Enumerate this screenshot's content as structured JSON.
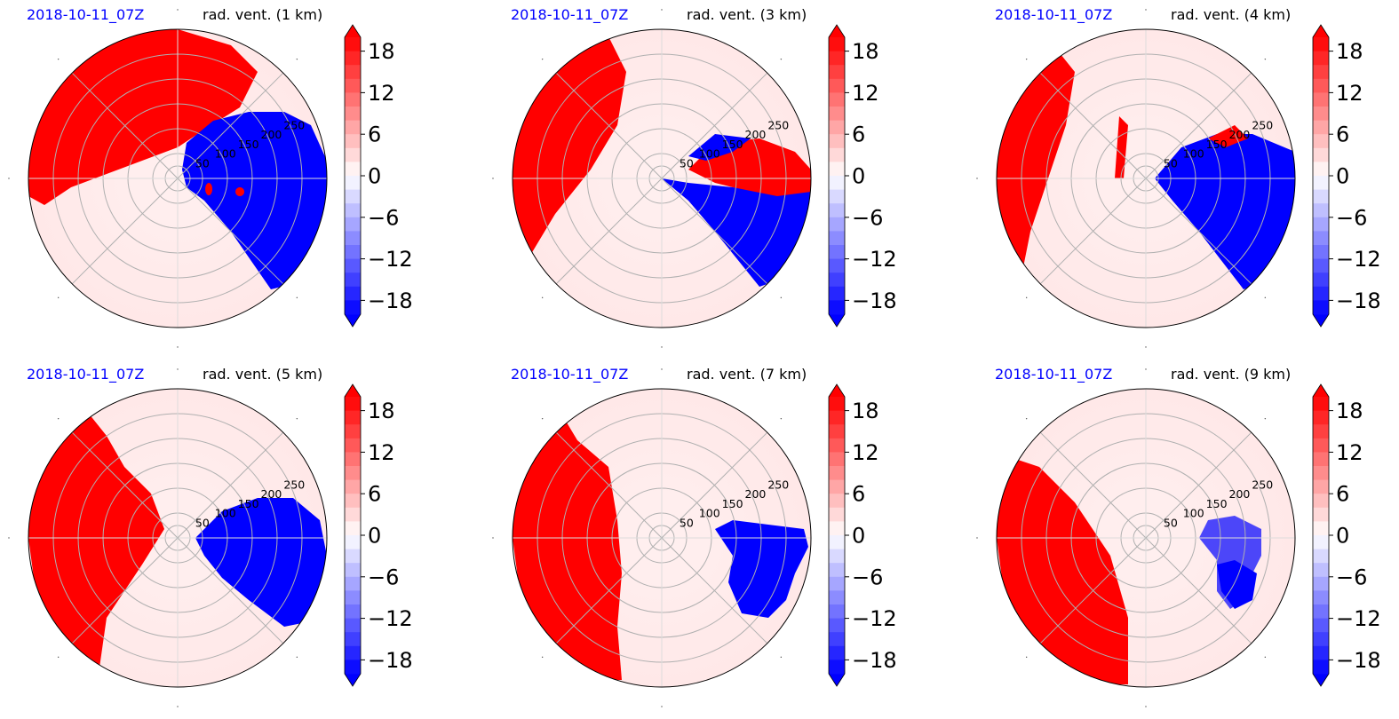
{
  "colors": {
    "positive": "#ff0000",
    "negative": "#0000ff",
    "date_text": "#0000ff",
    "grid": "#b0b0b0"
  },
  "colorbar": {
    "ticks": [
      "18",
      "12",
      "6",
      "0",
      "−6",
      "−12",
      "−18"
    ],
    "tick_values": [
      18,
      12,
      6,
      0,
      -6,
      -12,
      -18
    ],
    "range": [
      -20,
      20
    ],
    "extend": "both"
  },
  "chart_data": [
    {
      "type": "heatmap",
      "projection": "polar",
      "date": "2018-10-11_07Z",
      "title": "rad. vent. (1 km)",
      "radial_ticks": [
        "50",
        "100",
        "150",
        "200",
        "250"
      ],
      "rlim": [
        0,
        300
      ],
      "grid": true
    },
    {
      "type": "heatmap",
      "projection": "polar",
      "date": "2018-10-11_07Z",
      "title": "rad. vent. (3 km)",
      "radial_ticks": [
        "50",
        "100",
        "150",
        "200",
        "250"
      ],
      "rlim": [
        0,
        300
      ],
      "grid": true
    },
    {
      "type": "heatmap",
      "projection": "polar",
      "date": "2018-10-11_07Z",
      "title": "rad. vent. (4 km)",
      "radial_ticks": [
        "50",
        "100",
        "150",
        "200",
        "250"
      ],
      "rlim": [
        0,
        300
      ],
      "grid": true
    },
    {
      "type": "heatmap",
      "projection": "polar",
      "date": "2018-10-11_07Z",
      "title": "rad. vent. (5 km)",
      "radial_ticks": [
        "50",
        "100",
        "150",
        "200",
        "250"
      ],
      "rlim": [
        0,
        300
      ],
      "grid": true
    },
    {
      "type": "heatmap",
      "projection": "polar",
      "date": "2018-10-11_07Z",
      "title": "rad. vent. (7 km)",
      "radial_ticks": [
        "50",
        "100",
        "150",
        "200",
        "250"
      ],
      "rlim": [
        0,
        300
      ],
      "grid": true
    },
    {
      "type": "heatmap",
      "projection": "polar",
      "date": "2018-10-11_07Z",
      "title": "rad. vent. (9 km)",
      "radial_ticks": [
        "50",
        "100",
        "150",
        "200",
        "250"
      ],
      "rlim": [
        0,
        300
      ],
      "grid": true
    }
  ]
}
